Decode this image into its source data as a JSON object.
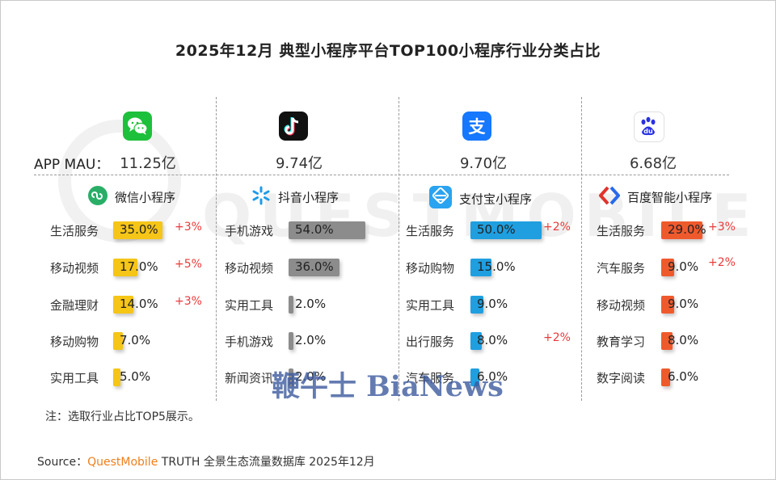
{
  "title": "2025年12月 典型小程序平台TOP100小程序行业分类占比",
  "mau_label": "APP MAU：",
  "watermark": "QUESTMOBILE",
  "overlay_watermark": "鞭牛士 BiaNews",
  "note": "注：选取行业占比TOP5展示。",
  "source": {
    "prefix": "Source：",
    "brand": "QuestMobile",
    "rest": " TRUTH 全景生态流量数据库 2025年12月"
  },
  "colors": {
    "wechat": "#f5c518",
    "douyin": "#8c8c8c",
    "alipay": "#1f9fe0",
    "baidu": "#ef5a2d",
    "change": "#e83a3a"
  },
  "chart_data": [
    {
      "type": "bar",
      "platform": "微信小程序",
      "app": "微信",
      "icon": "wechat-icon",
      "mau": "11.25亿",
      "xlim": [
        0,
        60
      ],
      "categories": [
        "生活服务",
        "移动视频",
        "金融理财",
        "移动购物",
        "实用工具"
      ],
      "values": [
        35.0,
        17.0,
        14.0,
        7.0,
        5.0
      ],
      "labels": [
        "35.0%",
        "17.0%",
        "14.0%",
        "7.0%",
        "5.0%"
      ],
      "changes": [
        "+3%",
        "+5%",
        "+3%",
        "",
        ""
      ]
    },
    {
      "type": "bar",
      "platform": "抖音小程序",
      "app": "抖音",
      "icon": "douyin-icon",
      "mau": "9.74亿",
      "xlim": [
        0,
        60
      ],
      "categories": [
        "手机游戏",
        "移动视频",
        "实用工具",
        "手机游戏",
        "新闻资讯"
      ],
      "values": [
        54.0,
        36.0,
        2.0,
        2.0,
        2.0
      ],
      "labels": [
        "54.0%",
        "36.0%",
        "2.0%",
        "2.0%",
        "2.0%"
      ],
      "changes": [
        "",
        "",
        "",
        "",
        ""
      ]
    },
    {
      "type": "bar",
      "platform": "支付宝小程序",
      "app": "支付宝",
      "icon": "alipay-icon",
      "mau": "9.70亿",
      "xlim": [
        0,
        60
      ],
      "categories": [
        "生活服务",
        "移动购物",
        "实用工具",
        "出行服务",
        "汽车服务"
      ],
      "values": [
        50.0,
        15.0,
        9.0,
        8.0,
        6.0
      ],
      "labels": [
        "50.0%",
        "15.0%",
        "9.0%",
        "8.0%",
        "6.0%"
      ],
      "changes": [
        "+2%",
        "",
        "",
        "+2%",
        ""
      ]
    },
    {
      "type": "bar",
      "platform": "百度智能小程序",
      "app": "百度",
      "icon": "baidu-icon",
      "mau": "6.68亿",
      "xlim": [
        0,
        60
      ],
      "categories": [
        "生活服务",
        "汽车服务",
        "移动视频",
        "教育学习",
        "数字阅读"
      ],
      "values": [
        29.0,
        9.0,
        9.0,
        8.0,
        6.0
      ],
      "labels": [
        "29.0%",
        "9.0%",
        "9.0%",
        "8.0%",
        "6.0%"
      ],
      "changes": [
        "+3%",
        "+2%",
        "",
        "",
        ""
      ]
    }
  ]
}
